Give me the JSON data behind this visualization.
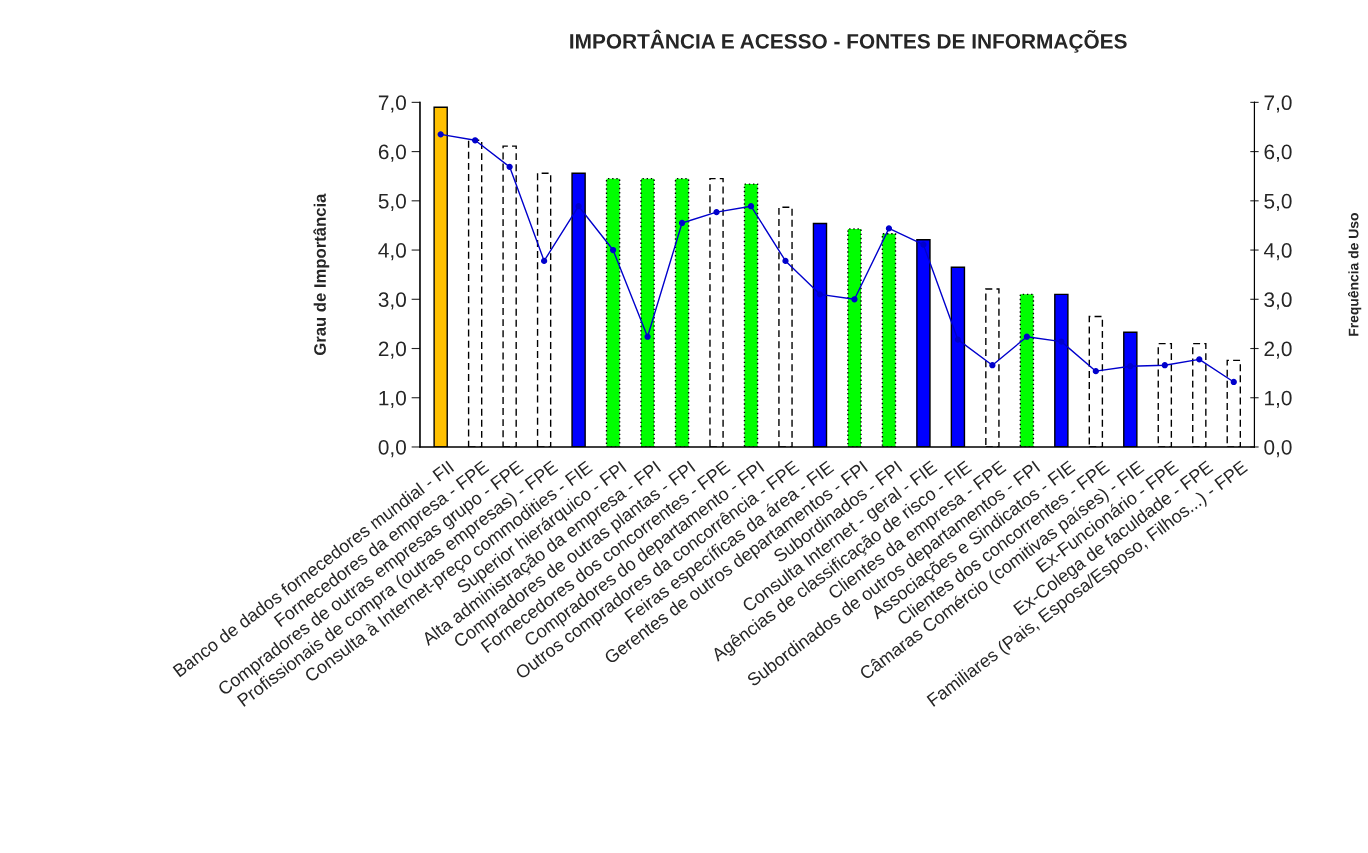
{
  "chart_data": {
    "type": "bar",
    "title": "IMPORTÂNCIA E ACESSO - FONTES DE INFORMAÇÕES",
    "ylabel": "Grau de Importância",
    "y2label": "Frequência de Uso",
    "categories": [
      "Banco de dados fornecedores mundial - FII",
      "Fornecedores da empresa - FPE",
      "Compradores de outras empresas grupo - FPE",
      "Profissionais de compra (outras empresas) - FPE",
      "Consulta à Internet-preço commodities - FIE",
      "Superior hierárquico - FPI",
      "Alta administração da empresa - FPI",
      "Compradores de outras plantas - FPI",
      "Fornecedores dos concorrentes - FPE",
      "Compradores do departamento - FPI",
      "Outros compradores da concorrência - FPE",
      "Feiras específicas da área - FIE",
      "Gerentes de outros departamentos - FPI",
      "Subordinados - FPI",
      "Consulta Internet - geral - FIE",
      "Agências de classificação de risco - FIE",
      "Clientes da empresa - FPE",
      "Subordinados de outros departamentos - FPI",
      "Associações e Sindicatos - FIE",
      "Clientes dos concorrentes - FPE",
      "Câmaras Comércio (comitivas países) - FIE",
      "Ex-Funcionário - FPE",
      "Ex-Colega de faculdade - FPE",
      "Familiares (Pais, Esposa/Esposo, Filhos...) - FPE"
    ],
    "series": [
      {
        "color": "#ffc000",
        "line_style": "solid",
        "values": [
          6.9,
          null,
          null,
          null,
          null,
          null,
          null,
          null,
          null,
          null,
          null,
          null,
          null,
          null,
          null,
          null,
          null,
          null,
          null,
          null,
          null,
          null,
          null,
          null
        ]
      },
      {
        "color": "#ffffff",
        "line_style": "dashed",
        "values": [
          null,
          6.23,
          6.11,
          5.56,
          null,
          null,
          null,
          null,
          5.45,
          null,
          4.87,
          null,
          null,
          null,
          null,
          null,
          3.21,
          null,
          null,
          2.65,
          null,
          2.1,
          2.1,
          1.76
        ]
      },
      {
        "color": "#0000ff",
        "line_style": "solid",
        "values": [
          null,
          null,
          null,
          null,
          5.56,
          null,
          null,
          null,
          null,
          null,
          null,
          4.54,
          null,
          null,
          4.21,
          3.65,
          null,
          null,
          3.1,
          null,
          2.33,
          null,
          null,
          null
        ]
      },
      {
        "color": "#00ff00",
        "line_style": "dotted",
        "values": [
          null,
          null,
          null,
          null,
          null,
          5.45,
          5.45,
          5.45,
          null,
          5.34,
          null,
          null,
          4.43,
          4.33,
          null,
          null,
          null,
          3.1,
          null,
          null,
          null,
          null,
          null,
          null
        ]
      },
      {
        "type": "line",
        "axis": "y2",
        "color": "#0000cc",
        "marker": "circle",
        "line_style": "solid",
        "values": [
          6.35,
          6.23,
          5.69,
          3.78,
          4.89,
          4.0,
          2.24,
          4.55,
          4.77,
          4.89,
          3.78,
          3.1,
          3.0,
          4.44,
          4.11,
          2.18,
          1.66,
          2.24,
          2.14,
          1.54,
          1.64,
          1.66,
          1.78,
          1.32
        ]
      }
    ],
    "ylim": [
      0,
      7
    ],
    "yticks": [
      {
        "value": 0,
        "label": "0,0"
      },
      {
        "value": 1,
        "label": "1,0"
      },
      {
        "value": 2,
        "label": "2,0"
      },
      {
        "value": 3,
        "label": "3,0"
      },
      {
        "value": 4,
        "label": "4,0"
      },
      {
        "value": 5,
        "label": "5,0"
      },
      {
        "value": 6,
        "label": "6,0"
      },
      {
        "value": 7,
        "label": "7,0"
      }
    ],
    "y2lim": [
      0,
      7
    ],
    "y2ticks": [
      {
        "value": 0,
        "label": "0,0"
      },
      {
        "value": 1,
        "label": "1,0"
      },
      {
        "value": 2,
        "label": "2,0"
      },
      {
        "value": 3,
        "label": "3,0"
      },
      {
        "value": 4,
        "label": "4,0"
      },
      {
        "value": 5,
        "label": "5,0"
      },
      {
        "value": 6,
        "label": "6,0"
      },
      {
        "value": 7,
        "label": "7,0"
      }
    ],
    "grid": false,
    "legend": false
  }
}
